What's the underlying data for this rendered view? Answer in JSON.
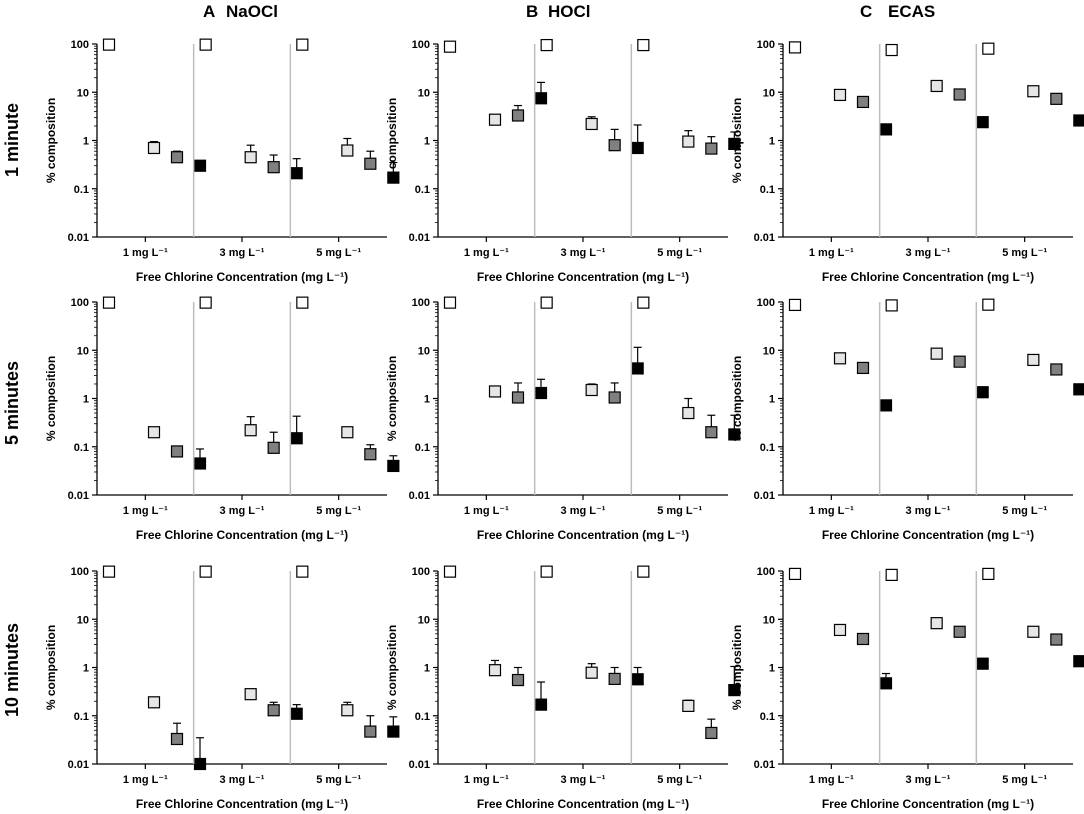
{
  "figure": {
    "column_headers": [
      {
        "letter": "A",
        "label": "NaOCl"
      },
      {
        "letter": "B",
        "label": "HOCl"
      },
      {
        "letter": "C",
        "label": "ECAS"
      }
    ],
    "row_labels": [
      "1 minute",
      "5 minutes",
      "10 minutes"
    ],
    "colors": {
      "axis": "#000000",
      "divider": "#bdbdbd",
      "light": "#e6e6e6",
      "mid": "#808080",
      "dark": "#000000",
      "white": "#ffffff"
    }
  },
  "chart_data": [
    {
      "type": "scatter",
      "id": "A1",
      "panel_letter": "A",
      "panel_title": "NaOCl",
      "row_label": "1 minute",
      "title": "NaOCl — 1 minute",
      "yscale": "log",
      "ylim": [
        0.01,
        100
      ],
      "ylabel": "% composition",
      "xlabel": "Free Chlorine Concentration (mg L⁻¹)",
      "yticks": [
        "100",
        "10",
        "1",
        "0.1",
        "0.01"
      ],
      "groups": [
        {
          "label": "1 mg L⁻¹",
          "values": [
            97,
            0.7,
            0.45,
            0.3
          ],
          "err_upper": [
            0,
            0.95,
            0.6,
            0.38
          ]
        },
        {
          "label": "3 mg L⁻¹",
          "values": [
            97,
            0.45,
            0.28,
            0.21
          ],
          "err_upper": [
            0,
            0.8,
            0.5,
            0.42
          ]
        },
        {
          "label": "5 mg L⁻¹",
          "values": [
            97,
            0.62,
            0.33,
            0.17
          ],
          "err_upper": [
            0,
            1.1,
            0.6,
            0.35
          ]
        }
      ]
    },
    {
      "type": "scatter",
      "id": "B1",
      "panel_letter": "B",
      "panel_title": "HOCl",
      "row_label": "1 minute",
      "title": "HOCl — 1 minute",
      "yscale": "log",
      "ylim": [
        0.01,
        100
      ],
      "ylabel": "% composition",
      "xlabel": "Free Chlorine Concentration (mg L⁻¹)",
      "yticks": [
        "100",
        "10",
        "1",
        "0.1",
        "0.01"
      ],
      "groups": [
        {
          "label": "1 mg L⁻¹",
          "values": [
            88,
            2.7,
            3.3,
            7.5
          ],
          "err_upper": [
            0,
            0,
            5.3,
            16
          ]
        },
        {
          "label": "3 mg L⁻¹",
          "values": [
            95,
            2.2,
            0.8,
            0.7
          ],
          "err_upper": [
            0,
            3.1,
            1.7,
            2.1
          ]
        },
        {
          "label": "5 mg L⁻¹",
          "values": [
            95,
            0.95,
            0.68,
            0.85
          ],
          "err_upper": [
            0,
            1.6,
            1.2,
            1.5
          ]
        }
      ]
    },
    {
      "type": "scatter",
      "id": "C1",
      "panel_letter": "C",
      "panel_title": "ECAS",
      "row_label": "1 minute",
      "title": "ECAS — 1 minute",
      "yscale": "log",
      "ylim": [
        0.01,
        100
      ],
      "ylabel": "% composition",
      "xlabel": "Free Chlorine Concentration (mg L⁻¹)",
      "yticks": [
        "100",
        "10",
        "1",
        "0.1",
        "0.01"
      ],
      "groups": [
        {
          "label": "1 mg L⁻¹",
          "values": [
            85,
            8.8,
            6.3,
            1.7
          ],
          "err_upper": [
            0,
            0,
            0,
            2.1
          ]
        },
        {
          "label": "3 mg L⁻¹",
          "values": [
            75,
            13.5,
            9,
            2.4
          ],
          "err_upper": [
            0,
            0,
            0,
            3
          ]
        },
        {
          "label": "5 mg L⁻¹",
          "values": [
            80,
            10.5,
            7.3,
            2.6
          ],
          "err_upper": [
            0,
            0,
            0,
            0
          ]
        }
      ]
    },
    {
      "type": "scatter",
      "id": "A2",
      "panel_letter": "A",
      "panel_title": "NaOCl",
      "row_label": "5 minutes",
      "title": "NaOCl — 5 minutes",
      "yscale": "log",
      "ylim": [
        0.01,
        100
      ],
      "ylabel": "% composition",
      "xlabel": "Free Chlorine Concentration (mg L⁻¹)",
      "yticks": [
        "100",
        "10",
        "1",
        "0.1",
        "0.01"
      ],
      "groups": [
        {
          "label": "1 mg L⁻¹",
          "values": [
            97,
            0.2,
            0.08,
            0.045
          ],
          "err_upper": [
            0,
            0,
            0,
            0.09
          ]
        },
        {
          "label": "3 mg L⁻¹",
          "values": [
            97,
            0.22,
            0.095,
            0.15
          ],
          "err_upper": [
            0,
            0.42,
            0.2,
            0.43
          ]
        },
        {
          "label": "5 mg L⁻¹",
          "values": [
            97,
            0.2,
            0.07,
            0.04
          ],
          "err_upper": [
            0,
            0.22,
            0.11,
            0.065
          ]
        }
      ]
    },
    {
      "type": "scatter",
      "id": "B2",
      "panel_letter": "B",
      "panel_title": "HOCl",
      "row_label": "5 minutes",
      "title": "HOCl — 5 minutes",
      "yscale": "log",
      "ylim": [
        0.01,
        100
      ],
      "ylabel": "% composition",
      "xlabel": "Free Chlorine Concentration (mg L⁻¹)",
      "yticks": [
        "100",
        "10",
        "1",
        "0.1",
        "0.01"
      ],
      "groups": [
        {
          "label": "1 mg L⁻¹",
          "values": [
            97,
            1.4,
            1.05,
            1.3
          ],
          "err_upper": [
            0,
            1.75,
            2.1,
            2.5
          ]
        },
        {
          "label": "3 mg L⁻¹",
          "values": [
            97,
            1.5,
            1.05,
            4.2
          ],
          "err_upper": [
            0,
            2,
            2.1,
            11.5
          ]
        },
        {
          "label": "5 mg L⁻¹",
          "values": [
            97,
            0.5,
            0.2,
            0.18
          ],
          "err_upper": [
            0,
            1,
            0.45,
            0.45
          ]
        }
      ]
    },
    {
      "type": "scatter",
      "id": "C2",
      "panel_letter": "C",
      "panel_title": "ECAS",
      "row_label": "5 minutes",
      "title": "ECAS — 5 minutes",
      "yscale": "log",
      "ylim": [
        0.01,
        100
      ],
      "ylabel": "% composition",
      "xlabel": "Free Chlorine Concentration (mg L⁻¹)",
      "yticks": [
        "100",
        "10",
        "1",
        "0.1",
        "0.01"
      ],
      "groups": [
        {
          "label": "1 mg L⁻¹",
          "values": [
            87,
            6.8,
            4.3,
            0.72
          ],
          "err_upper": [
            0,
            0,
            0,
            0
          ]
        },
        {
          "label": "3 mg L⁻¹",
          "values": [
            85,
            8.5,
            5.8,
            1.35
          ],
          "err_upper": [
            0,
            0,
            0,
            0
          ]
        },
        {
          "label": "5 mg L⁻¹",
          "values": [
            88,
            6.3,
            4,
            1.55
          ],
          "err_upper": [
            0,
            0,
            0,
            0
          ]
        }
      ]
    },
    {
      "type": "scatter",
      "id": "A3",
      "panel_letter": "A",
      "panel_title": "NaOCl",
      "row_label": "10 minutes",
      "title": "NaOCl — 10 minutes",
      "yscale": "log",
      "ylim": [
        0.01,
        100
      ],
      "ylabel": "% composition",
      "xlabel": "Free Chlorine Concentration (mg L⁻¹)",
      "yticks": [
        "100",
        "10",
        "1",
        "0.1",
        "0.01"
      ],
      "groups": [
        {
          "label": "1 mg L⁻¹",
          "values": [
            97,
            0.19,
            0.033,
            0.01
          ],
          "err_upper": [
            0,
            0.23,
            0.07,
            0.035
          ]
        },
        {
          "label": "3 mg L⁻¹",
          "values": [
            97,
            0.28,
            0.13,
            0.11
          ],
          "err_upper": [
            0,
            0.33,
            0.19,
            0.17
          ]
        },
        {
          "label": "5 mg L⁻¹",
          "values": [
            97,
            0.13,
            0.047,
            0.047
          ],
          "err_upper": [
            0,
            0.19,
            0.1,
            0.095
          ]
        }
      ]
    },
    {
      "type": "scatter",
      "id": "B3",
      "panel_letter": "B",
      "panel_title": "HOCl",
      "row_label": "10 minutes",
      "title": "HOCl — 10 minutes",
      "yscale": "log",
      "ylim": [
        0.01,
        100
      ],
      "ylabel": "% composition",
      "xlabel": "Free Chlorine Concentration (mg L⁻¹)",
      "yticks": [
        "100",
        "10",
        "1",
        "0.1",
        "0.01"
      ],
      "groups": [
        {
          "label": "1 mg L⁻¹",
          "values": [
            97,
            0.88,
            0.55,
            0.17
          ],
          "err_upper": [
            0,
            1.4,
            1,
            0.5
          ]
        },
        {
          "label": "3 mg L⁻¹",
          "values": [
            97,
            0.78,
            0.58,
            0.57
          ],
          "err_upper": [
            0,
            1.2,
            1,
            1
          ]
        },
        {
          "label": "5 mg L⁻¹",
          "values": [
            97,
            0.16,
            0.044,
            0.34
          ],
          "err_upper": [
            0,
            0.21,
            0.085,
            1.05
          ]
        }
      ]
    },
    {
      "type": "scatter",
      "id": "C3",
      "panel_letter": "C",
      "panel_title": "ECAS",
      "row_label": "10 minutes",
      "title": "ECAS — 10 minutes",
      "yscale": "log",
      "ylim": [
        0.01,
        100
      ],
      "ylabel": "% composition",
      "xlabel": "Free Chlorine Concentration (mg L⁻¹)",
      "yticks": [
        "100",
        "10",
        "1",
        "0.1",
        "0.01"
      ],
      "groups": [
        {
          "label": "1 mg L⁻¹",
          "values": [
            87,
            6,
            3.9,
            0.47
          ],
          "err_upper": [
            0,
            0,
            0,
            0.75
          ]
        },
        {
          "label": "3 mg L⁻¹",
          "values": [
            83,
            8.3,
            5.5,
            1.2
          ],
          "err_upper": [
            0,
            0,
            0,
            0
          ]
        },
        {
          "label": "5 mg L⁻¹",
          "values": [
            87,
            5.5,
            3.8,
            1.35
          ],
          "err_upper": [
            0,
            0,
            0,
            0
          ]
        }
      ]
    }
  ]
}
